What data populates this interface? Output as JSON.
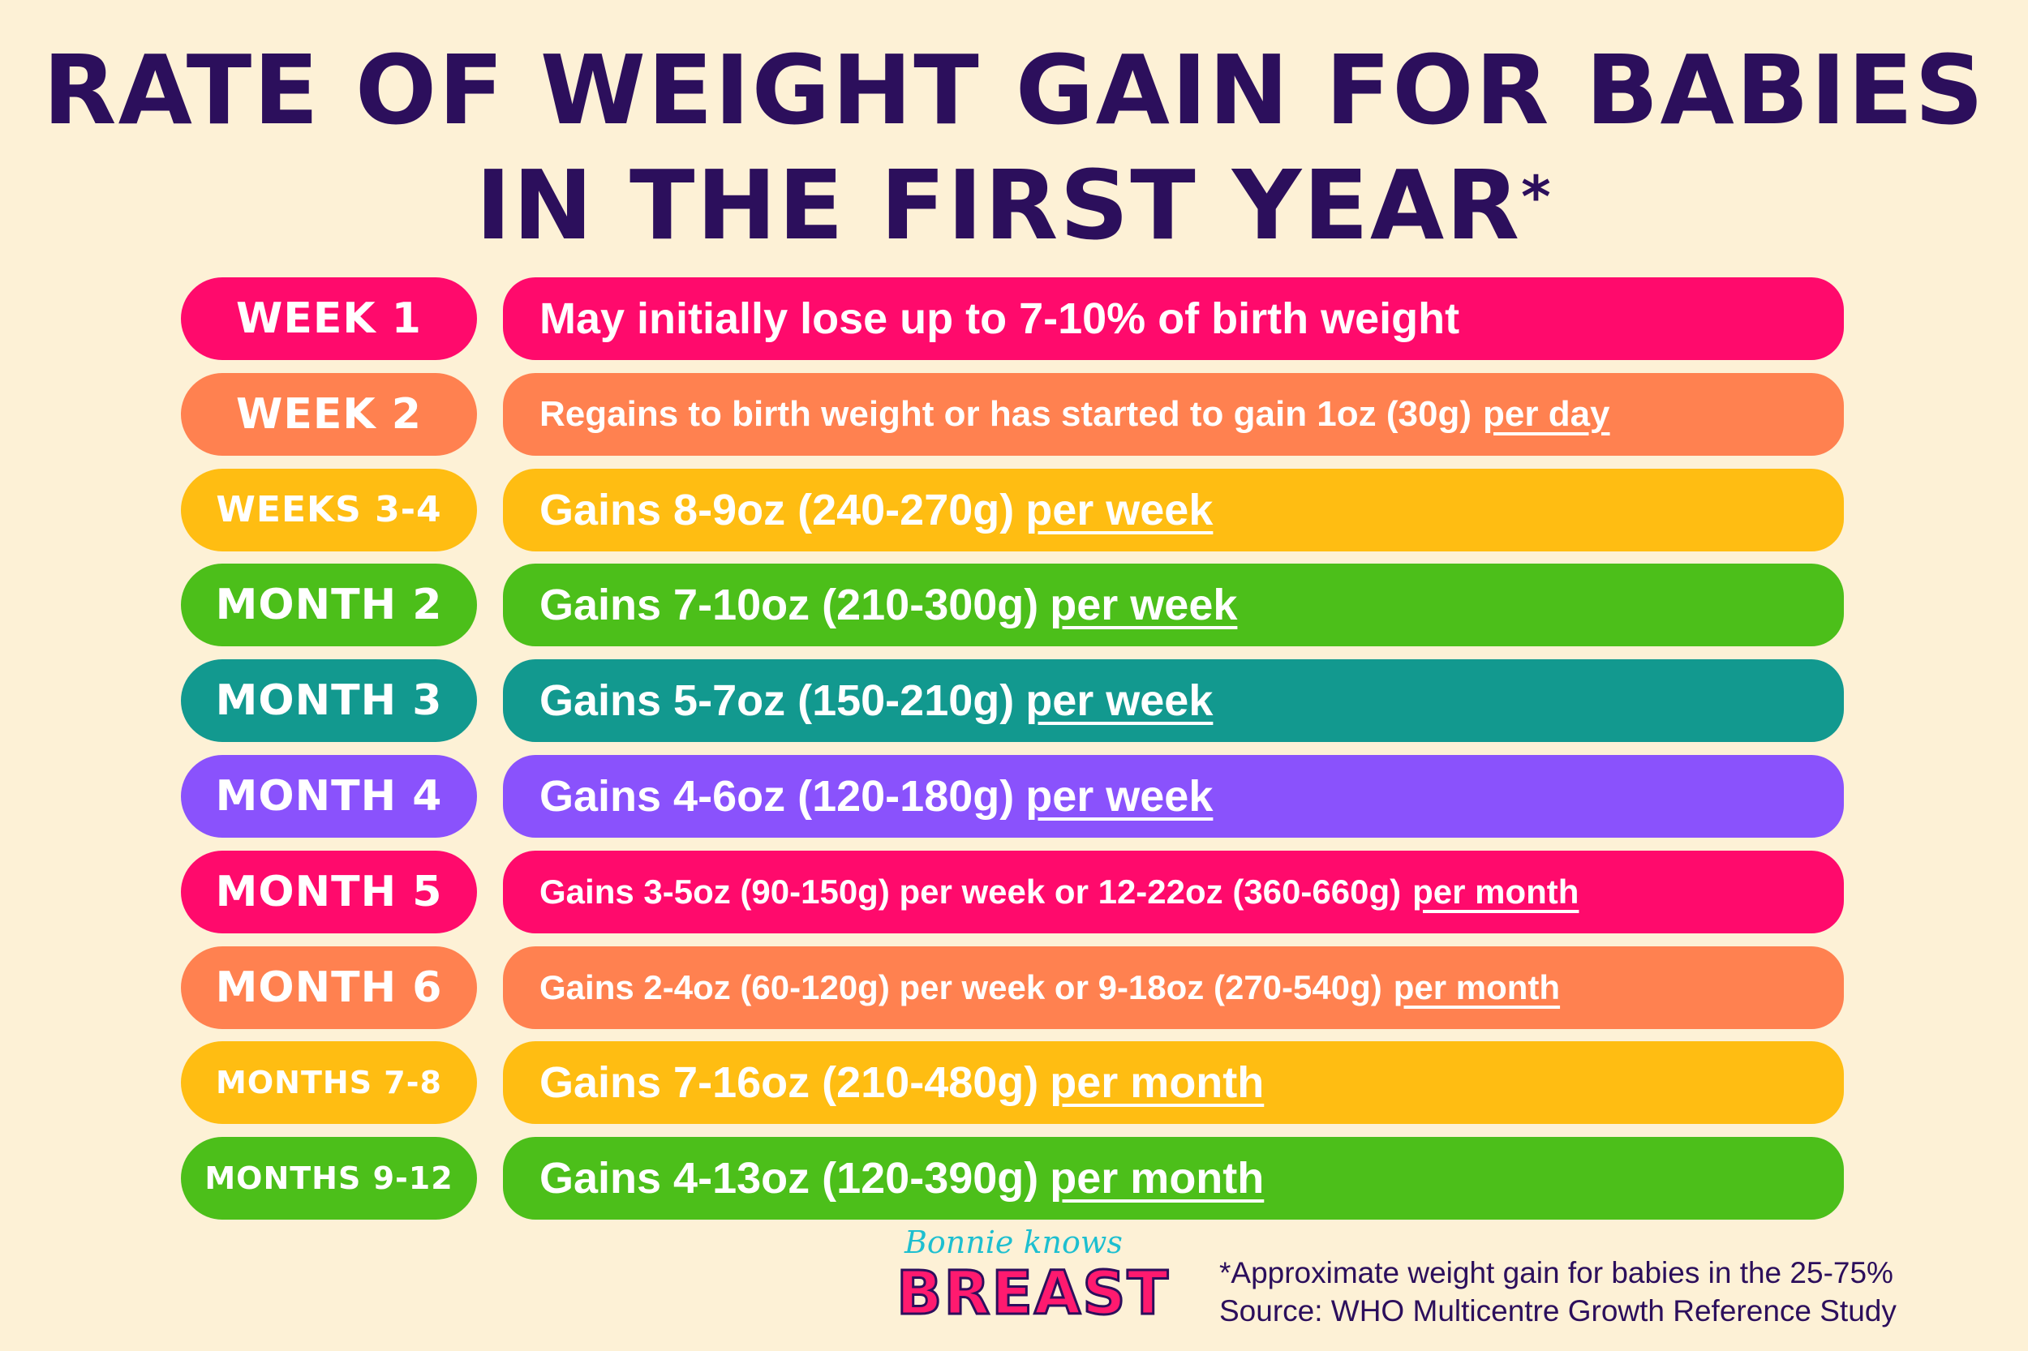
{
  "title": {
    "line1": "RATE OF WEIGHT GAIN FOR BABIES",
    "line2": "IN THE FIRST YEAR",
    "asterisk": "*"
  },
  "rows": [
    {
      "label": "WEEK 1",
      "text": "May initially lose up to 7-10% of birth weight",
      "underlined": "",
      "color": "#ff0a6c"
    },
    {
      "label": "WEEK 2",
      "text": "Regains to birth weight or has started to gain 1oz (30g)",
      "underlined": "per day",
      "color": "#ff8150"
    },
    {
      "label": "WEEKS 3-4",
      "text": "Gains 8-9oz (240-270g)",
      "underlined": "per week",
      "color": "#ffbd12"
    },
    {
      "label": "MONTH 2",
      "text": "Gains 7-10oz (210-300g)",
      "underlined": "per week",
      "color": "#4cbf1a"
    },
    {
      "label": "MONTH 3",
      "text": "Gains 5-7oz (150-210g)",
      "underlined": "per week",
      "color": "#12998f"
    },
    {
      "label": "MONTH 4",
      "text": "Gains 4-6oz (120-180g)",
      "underlined": "per week",
      "color": "#8a52fc"
    },
    {
      "label": "MONTH 5",
      "text": "Gains 3-5oz (90-150g) per week or 12-22oz (360-660g)",
      "underlined": "per month",
      "color": "#ff0a6c"
    },
    {
      "label": "MONTH 6",
      "text": "Gains 2-4oz (60-120g) per week or 9-18oz (270-540g)",
      "underlined": "per month",
      "color": "#ff8150"
    },
    {
      "label": "MONTHS 7-8",
      "text": "Gains 7-16oz (210-480g)",
      "underlined": "per month",
      "color": "#ffbd12"
    },
    {
      "label": "MONTHS 9-12",
      "text": "Gains 4-13oz (120-390g)",
      "underlined": "per month",
      "color": "#4cbf1a"
    }
  ],
  "logo": {
    "script": "Bonnie knows",
    "word": "BREAST"
  },
  "footnote": {
    "line1": "*Approximate weight gain for babies in the 25-75%",
    "line2": "Source: WHO Multicentre Growth Reference Study"
  }
}
